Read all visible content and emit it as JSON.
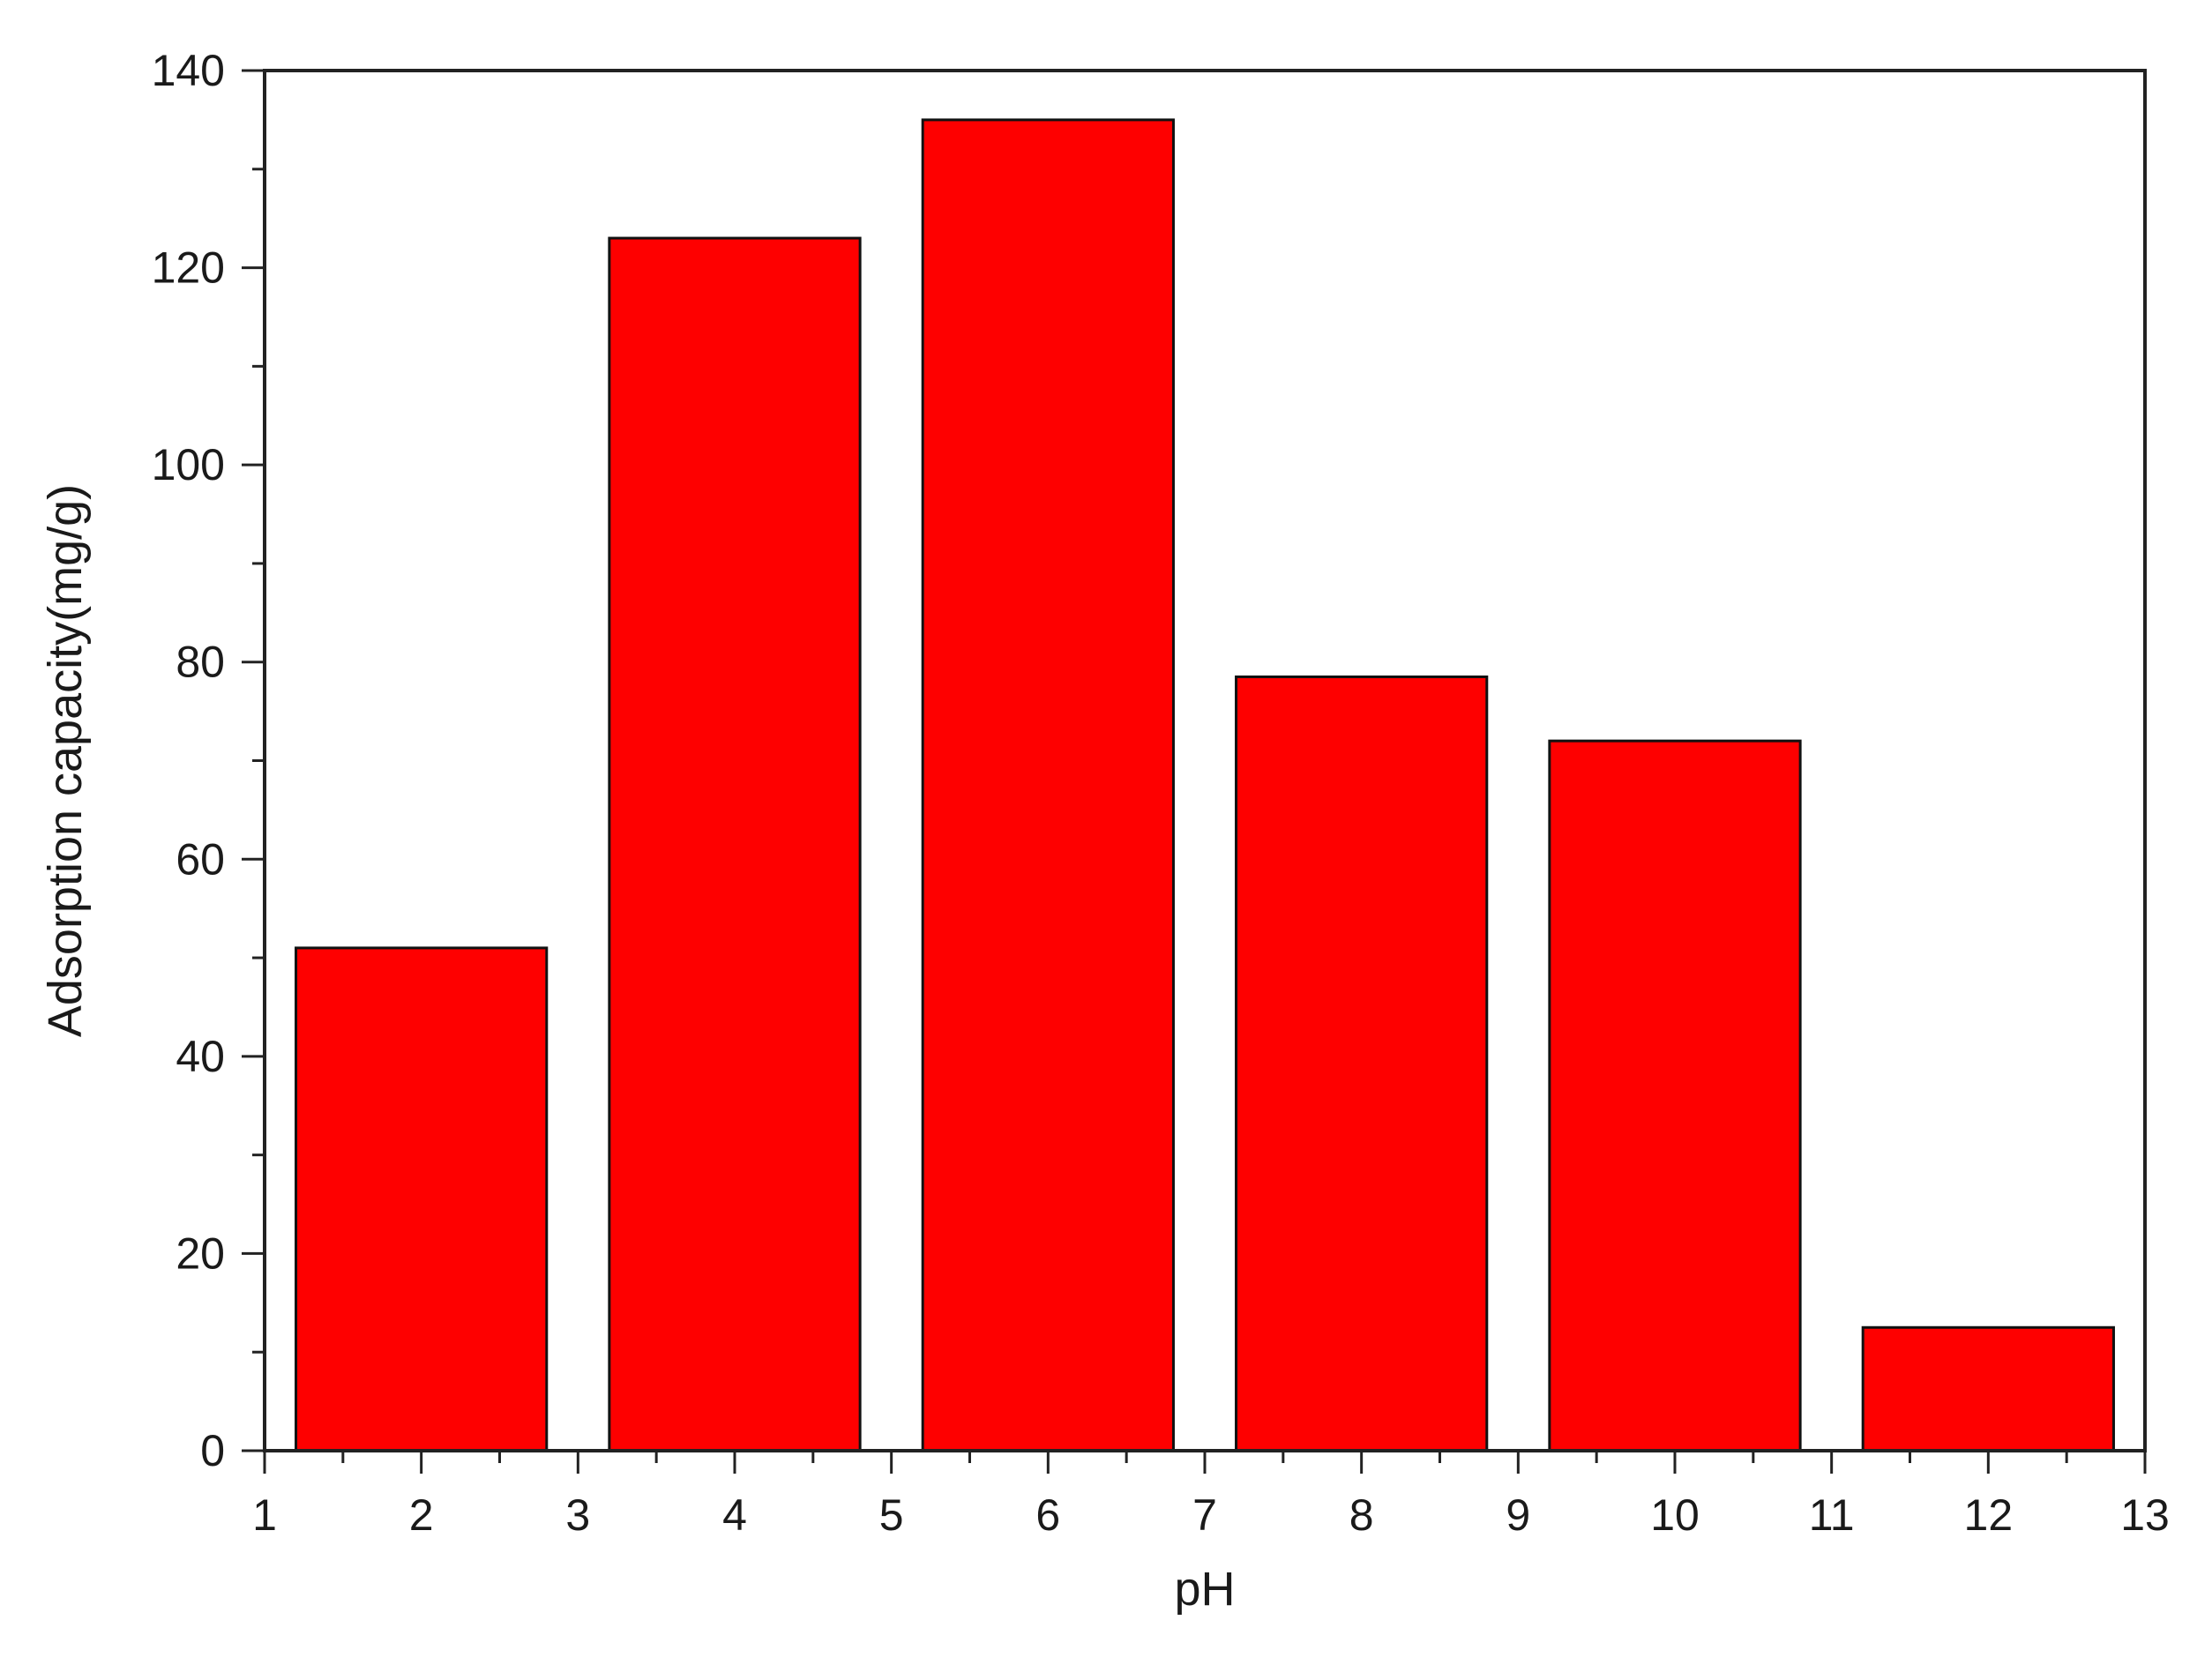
{
  "chart_data": {
    "type": "bar",
    "categories": [
      2,
      4,
      6,
      8,
      10,
      12
    ],
    "values": [
      51,
      123,
      135,
      78.5,
      72,
      12.5
    ],
    "bar_width": 1.6,
    "xlabel": "pH",
    "ylabel": "Adsorption capacity(mg/g)",
    "xlim": [
      1,
      13
    ],
    "ylim": [
      0,
      140
    ],
    "xticks": [
      1,
      2,
      3,
      4,
      5,
      6,
      7,
      8,
      9,
      10,
      11,
      12,
      13
    ],
    "yticks": [
      0,
      20,
      40,
      60,
      80,
      100,
      120,
      140
    ],
    "grid": false,
    "legend": false,
    "colors": {
      "bar": "#fe0000",
      "edge": "#111111",
      "axis": "#222222"
    }
  }
}
